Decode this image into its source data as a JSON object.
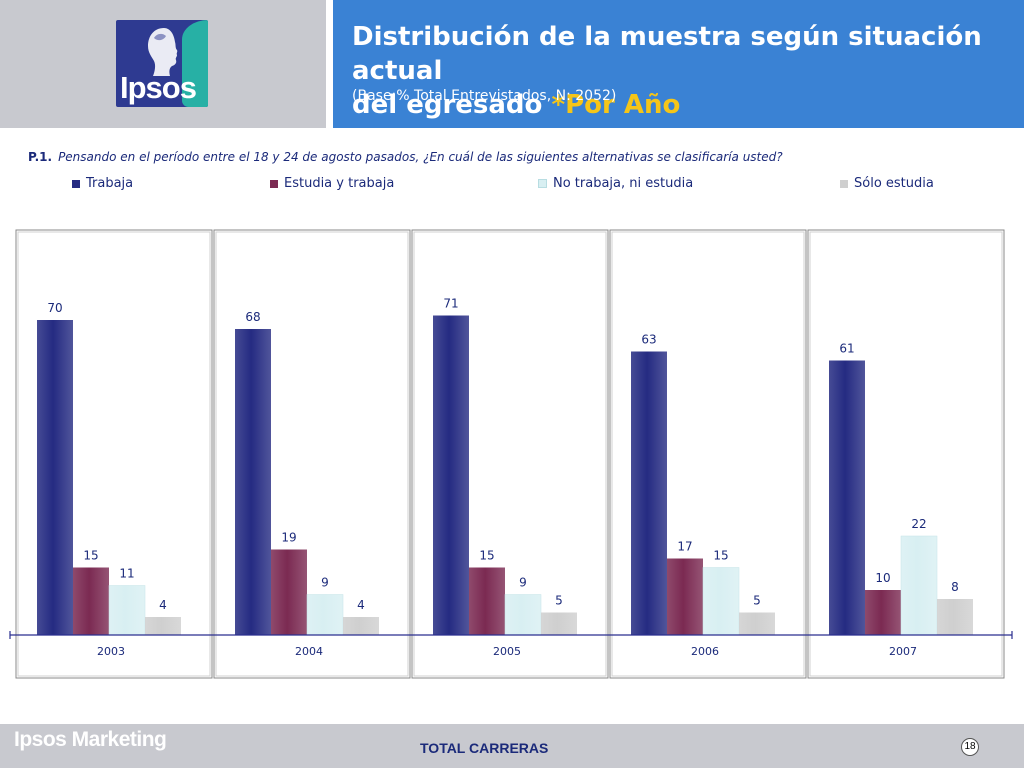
{
  "header": {
    "logo_text": "Ipsos",
    "title_line1": "Distribución de la muestra según situación actual",
    "title_line2_main": "del egresado ",
    "title_line2_highlight": "*Por Año",
    "subtitle": "(Base:% Total Entrevistados, N: 2052)"
  },
  "question": {
    "code": "P.1.",
    "text": "Pensando en el período entre el 18 y 24 de agosto pasados, ¿En cuál de las siguientes alternativas se clasificaría usted?"
  },
  "colors": {
    "trabaja": "#252b82",
    "estudia_trabaja": "#7b2a52",
    "no_trabaja": "#d8eff2",
    "solo_estudia": "#cfcfcf",
    "header_blue": "#3a82d4",
    "axis": "#2a2f8f"
  },
  "chart_data": {
    "type": "bar",
    "categories": [
      "2003",
      "2004",
      "2005",
      "2006",
      "2007"
    ],
    "series": [
      {
        "name": "Trabaja",
        "values": [
          70,
          68,
          71,
          63,
          61
        ]
      },
      {
        "name": "Estudia y trabaja",
        "values": [
          15,
          19,
          15,
          17,
          10
        ]
      },
      {
        "name": "No trabaja, ni estudia",
        "values": [
          11,
          9,
          9,
          15,
          22
        ]
      },
      {
        "name": "Sólo estudia",
        "values": [
          4,
          4,
          5,
          5,
          8
        ]
      }
    ],
    "ylim": [
      0,
      85
    ],
    "grid": false,
    "legend_position": "top"
  },
  "footer": {
    "brand": "Ipsos Marketing",
    "section": "TOTAL CARRERAS",
    "page": "18"
  }
}
